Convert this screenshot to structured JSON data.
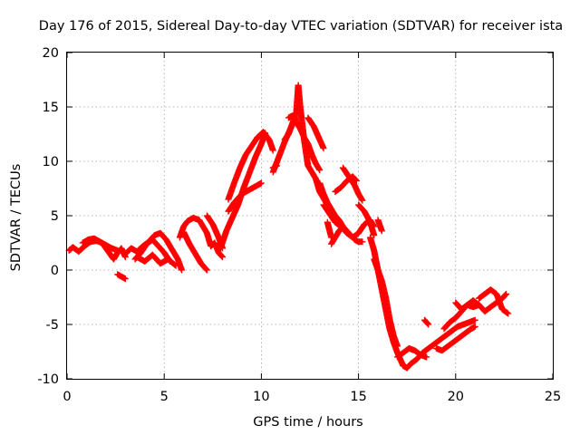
{
  "chart_data": {
    "type": "scatter",
    "title": "Day 176 of 2015, Sidereal Day-to-day VTEC variation (SDTVAR) for receiver ista",
    "xlabel": "GPS time / hours",
    "ylabel": "SDTVAR / TECUs",
    "xlim": [
      0,
      25
    ],
    "ylim": [
      -10,
      20
    ],
    "xticks": [
      0,
      5,
      10,
      15,
      20,
      25
    ],
    "yticks": [
      -10,
      -5,
      0,
      5,
      10,
      15,
      20
    ],
    "grid": true,
    "marker": "+",
    "marker_color": "#ff0000",
    "series": [
      {
        "name": "SDTVAR",
        "color": "#ff0000",
        "segments": [
          {
            "x": [
              0.1,
              0.3,
              0.6,
              0.9,
              1.2,
              1.5,
              1.8,
              2.0,
              2.2,
              2.4,
              2.6,
              2.8,
              3.0
            ],
            "y": [
              1.8,
              2.1,
              1.7,
              2.2,
              2.6,
              2.7,
              2.5,
              2.0,
              1.5,
              1.0,
              1.6,
              2.0,
              1.2
            ]
          },
          {
            "x": [
              0.8,
              1.1,
              1.4,
              1.7,
              2.0,
              2.3,
              2.6
            ],
            "y": [
              2.5,
              2.8,
              2.9,
              2.6,
              2.3,
              2.0,
              1.8
            ]
          },
          {
            "x": [
              2.6,
              2.8,
              3.0
            ],
            "y": [
              -0.4,
              -0.6,
              -0.8
            ]
          },
          {
            "x": [
              3.0,
              3.3,
              3.6,
              3.9,
              4.2,
              4.5,
              4.8,
              5.1,
              5.4,
              5.7,
              5.9
            ],
            "y": [
              1.5,
              2.0,
              1.7,
              2.2,
              2.6,
              3.2,
              3.4,
              2.8,
              1.9,
              1.0,
              0.0
            ]
          },
          {
            "x": [
              3.5,
              3.8,
              4.1,
              4.4,
              4.7,
              5.0,
              5.3
            ],
            "y": [
              1.0,
              1.6,
              2.4,
              2.8,
              2.2,
              1.6,
              0.8
            ]
          },
          {
            "x": [
              3.6,
              4.0,
              4.4,
              4.8,
              5.2,
              5.6
            ],
            "y": [
              1.2,
              0.8,
              1.4,
              0.6,
              1.0,
              0.4
            ]
          },
          {
            "x": [
              5.8,
              6.0,
              6.2,
              6.5,
              6.8,
              7.0,
              7.2,
              7.4,
              7.6,
              7.8,
              8.0
            ],
            "y": [
              3.0,
              4.0,
              4.5,
              4.8,
              4.6,
              4.0,
              3.4,
              2.2,
              2.5,
              1.6,
              1.2
            ]
          },
          {
            "x": [
              6.0,
              6.3,
              6.6,
              6.9,
              7.1,
              7.2
            ],
            "y": [
              3.5,
              2.4,
              1.5,
              0.6,
              0.2,
              0.0
            ]
          },
          {
            "x": [
              7.2,
              7.5,
              7.8,
              8.0
            ],
            "y": [
              5.0,
              4.2,
              3.0,
              2.0
            ]
          },
          {
            "x": [
              7.9,
              8.2,
              8.5,
              8.8,
              9.1,
              9.4,
              9.7,
              10.0,
              10.2
            ],
            "y": [
              2.0,
              3.6,
              4.8,
              6.0,
              7.6,
              9.0,
              10.4,
              11.6,
              12.6
            ]
          },
          {
            "x": [
              8.3,
              8.6,
              8.9,
              9.2,
              9.5,
              9.8,
              10.1
            ],
            "y": [
              6.5,
              8.0,
              9.4,
              10.6,
              11.4,
              12.2,
              12.6
            ]
          },
          {
            "x": [
              8.3,
              8.6,
              9.0,
              9.4,
              9.8,
              10.0
            ],
            "y": [
              5.4,
              6.2,
              7.0,
              7.4,
              7.8,
              8.0
            ]
          },
          {
            "x": [
              9.8,
              10.1,
              10.4,
              10.6
            ],
            "y": [
              12.2,
              12.7,
              12.0,
              11.0
            ]
          },
          {
            "x": [
              10.6,
              10.9,
              11.2,
              11.4,
              11.6,
              11.8
            ],
            "y": [
              9.0,
              10.4,
              11.8,
              12.6,
              13.4,
              14.0
            ]
          },
          {
            "x": [
              10.6,
              10.8
            ],
            "y": [
              9.4,
              9.6
            ]
          },
          {
            "x": [
              11.2,
              11.4,
              11.6,
              11.8,
              11.9,
              12.0,
              12.2,
              12.4,
              12.6,
              12.8,
              13.0,
              13.2,
              13.4,
              13.6
            ],
            "y": [
              12.0,
              12.5,
              13.5,
              14.5,
              17.0,
              15.0,
              12.0,
              9.6,
              9.0,
              8.4,
              7.2,
              6.6,
              6.0,
              5.2
            ]
          },
          {
            "x": [
              11.4,
              11.6,
              11.8,
              12.0,
              12.2,
              12.4,
              12.6,
              12.8,
              13.0
            ],
            "y": [
              14.0,
              14.2,
              13.6,
              13.0,
              12.2,
              11.6,
              10.6,
              9.8,
              9.2
            ]
          },
          {
            "x": [
              12.4,
              12.7,
              13.0,
              13.2
            ],
            "y": [
              14.0,
              13.2,
              12.0,
              11.2
            ]
          },
          {
            "x": [
              13.0,
              13.2,
              13.4,
              13.6,
              13.8,
              14.0,
              14.2,
              14.4,
              14.6,
              14.8,
              15.0,
              15.2
            ],
            "y": [
              8.0,
              7.0,
              6.2,
              5.6,
              5.0,
              4.6,
              4.0,
              3.6,
              3.2,
              2.8,
              2.6,
              2.6
            ]
          },
          {
            "x": [
              13.2,
              13.5,
              13.8,
              14.1,
              14.4,
              14.7,
              15.0,
              15.3,
              15.6,
              15.8
            ],
            "y": [
              6.0,
              5.2,
              4.4,
              4.0,
              3.4,
              3.0,
              3.4,
              4.2,
              4.6,
              4.0
            ]
          },
          {
            "x": [
              13.4,
              13.6
            ],
            "y": [
              4.4,
              3.0
            ]
          },
          {
            "x": [
              13.6,
              13.8,
              14.0,
              14.2
            ],
            "y": [
              2.4,
              3.0,
              3.6,
              4.0
            ]
          },
          {
            "x": [
              13.8,
              14.1,
              14.4,
              14.7,
              14.9
            ],
            "y": [
              7.2,
              7.6,
              8.2,
              8.6,
              8.2
            ]
          },
          {
            "x": [
              14.2,
              14.5,
              14.8,
              15.0,
              15.2
            ],
            "y": [
              9.4,
              8.6,
              7.8,
              7.0,
              6.4
            ]
          },
          {
            "x": [
              15.0,
              15.3,
              15.6,
              15.8
            ],
            "y": [
              6.0,
              5.4,
              4.4,
              3.2
            ]
          },
          {
            "x": [
              15.6,
              15.8,
              16.0,
              16.2,
              16.4,
              16.6,
              16.8,
              17.0,
              17.2,
              17.3
            ],
            "y": [
              3.0,
              1.8,
              0.0,
              -1.8,
              -3.6,
              -5.4,
              -6.6,
              -7.6,
              -8.4,
              -8.8
            ]
          },
          {
            "x": [
              15.8,
              16.0,
              16.2,
              16.4,
              16.6,
              16.8,
              17.0
            ],
            "y": [
              1.0,
              0.0,
              -1.0,
              -2.5,
              -4.5,
              -6.0,
              -7.0
            ]
          },
          {
            "x": [
              16.0,
              16.2
            ],
            "y": [
              4.6,
              3.6
            ]
          },
          {
            "x": [
              17.3,
              17.5,
              17.7,
              18.0,
              18.3,
              18.6,
              18.9,
              19.2,
              19.5,
              19.8,
              20.1,
              20.4,
              20.7,
              21.0
            ],
            "y": [
              -8.8,
              -9.0,
              -8.6,
              -8.2,
              -7.6,
              -7.2,
              -6.8,
              -6.4,
              -6.0,
              -5.6,
              -5.2,
              -5.0,
              -4.8,
              -4.6
            ]
          },
          {
            "x": [
              17.0,
              17.3,
              17.6,
              17.9,
              18.2,
              18.5
            ],
            "y": [
              -8.0,
              -7.6,
              -7.2,
              -7.4,
              -7.8,
              -8.0
            ]
          },
          {
            "x": [
              18.4,
              18.6
            ],
            "y": [
              -4.6,
              -5.0
            ]
          },
          {
            "x": [
              19.0,
              19.3,
              19.6,
              19.9,
              20.2,
              20.5,
              20.8,
              21.0
            ],
            "y": [
              -7.2,
              -7.4,
              -7.0,
              -6.6,
              -6.2,
              -5.8,
              -5.4,
              -5.2
            ]
          },
          {
            "x": [
              19.4,
              19.7,
              20.0,
              20.3,
              20.6,
              20.9,
              21.2
            ],
            "y": [
              -5.4,
              -4.8,
              -4.4,
              -3.8,
              -3.2,
              -3.4,
              -3.2
            ]
          },
          {
            "x": [
              20.0,
              20.3,
              20.6,
              20.9,
              21.2,
              21.5,
              21.8,
              22.1,
              22.4,
              22.6
            ],
            "y": [
              -3.0,
              -3.6,
              -3.2,
              -2.8,
              -3.2,
              -3.8,
              -3.4,
              -3.0,
              -2.6,
              -2.2
            ]
          },
          {
            "x": [
              21.2,
              21.5,
              21.8,
              22.1,
              22.4,
              22.7
            ],
            "y": [
              -2.6,
              -2.2,
              -1.8,
              -2.2,
              -3.6,
              -4.0
            ]
          }
        ]
      }
    ]
  }
}
